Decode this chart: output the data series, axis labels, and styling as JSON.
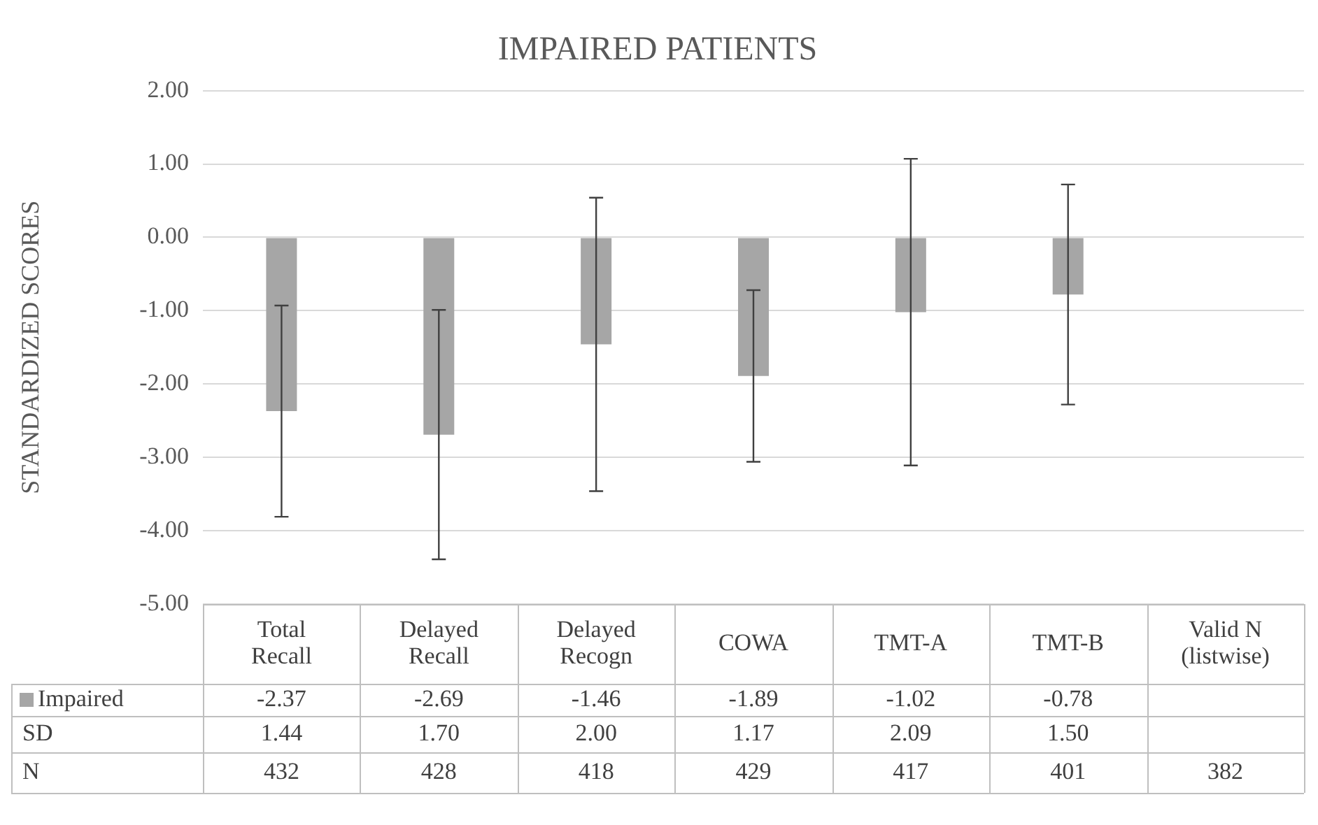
{
  "chart_data": {
    "type": "bar",
    "title": "IMPAIRED PATIENTS",
    "ylabel": "STANDARDIZED SCORES",
    "categories": [
      "Total Recall",
      "Delayed Recall",
      "Delayed Recogn",
      "COWA",
      "TMT-A",
      "TMT-B",
      "Valid N (listwise)"
    ],
    "series": [
      {
        "name": "Impaired",
        "color": "#a6a6a6",
        "values": [
          -2.37,
          -2.69,
          -1.46,
          -1.89,
          -1.02,
          -0.78,
          null
        ],
        "errors": [
          1.44,
          1.7,
          2.0,
          1.17,
          2.09,
          1.5,
          null
        ]
      }
    ],
    "ylim": [
      -5,
      2
    ],
    "yticks": [
      {
        "value": -5,
        "label": "-5.00"
      },
      {
        "value": -4,
        "label": "-4.00"
      },
      {
        "value": -3,
        "label": "-3.00"
      },
      {
        "value": -2,
        "label": "-2.00"
      },
      {
        "value": -1,
        "label": "-1.00"
      },
      {
        "value": 0,
        "label": "0.00"
      },
      {
        "value": 1,
        "label": "1.00"
      },
      {
        "value": 2,
        "label": "2.00"
      }
    ],
    "grid": "y",
    "data_labels": true,
    "annotations": [
      "SD",
      "1.44",
      "1.70",
      "2.00",
      "1.17",
      "2.09",
      "1.50",
      "N",
      "432",
      "428",
      "418",
      "429",
      "417",
      "401",
      "382"
    ]
  }
}
